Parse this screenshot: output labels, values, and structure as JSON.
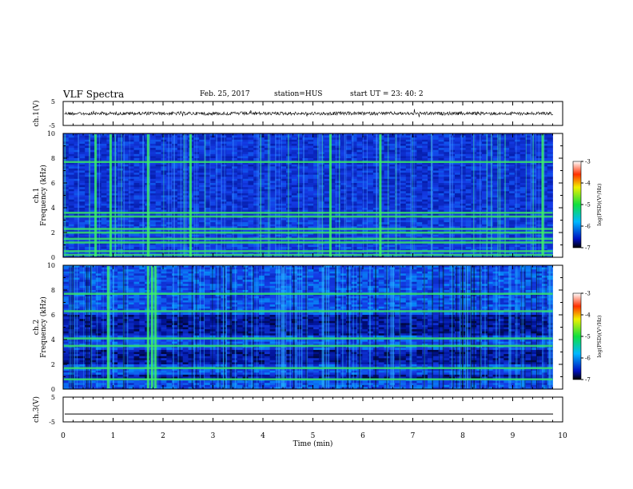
{
  "header": {
    "title": "VLF Spectra",
    "date": "Feb. 25, 2017",
    "station": "station=HUS",
    "start": "start  UT  =   23: 40: 2"
  },
  "chart_data": [
    {
      "type": "line",
      "panel": "ch1-waveform",
      "ylabel": "ch.1(V)",
      "ylim": [
        -5,
        5
      ],
      "yticks": [
        "5",
        "-5"
      ],
      "baseline": 0,
      "xlim": [
        0,
        10
      ]
    },
    {
      "type": "heatmap",
      "panel": "ch1-spectrogram",
      "ylabel": "ch.1\nFrequency (kHz)",
      "ylim": [
        0,
        10
      ],
      "yticks": [
        "0",
        "2",
        "4",
        "6",
        "8",
        "10"
      ],
      "xlim": [
        0,
        10
      ],
      "data_end_min": 9.8,
      "bands_khz": [
        0.2,
        0.5,
        1.2,
        1.5,
        2.0,
        2.3,
        3.3,
        3.6,
        7.7
      ],
      "bursts_min": [
        0.65,
        0.95,
        1.7,
        2.55,
        5.35,
        6.35,
        9.6
      ],
      "colorbar": {
        "label": "log(PSD)(V²/Hz)",
        "ticks": [
          "-3",
          "-4",
          "-5",
          "-6",
          "-7"
        ],
        "range": [
          -7,
          -3
        ]
      }
    },
    {
      "type": "heatmap",
      "panel": "ch2-spectrogram",
      "ylabel": "ch.2\nFrequency (kHz)",
      "ylim": [
        0,
        10
      ],
      "yticks": [
        "0",
        "2",
        "4",
        "6",
        "8",
        "10"
      ],
      "xlim": [
        0,
        10
      ],
      "data_end_min": 9.8,
      "bands_khz": [
        0.8,
        1.7,
        3.5,
        4.1,
        6.3,
        7.7
      ],
      "bursts_min": [
        0.9,
        1.7,
        1.78,
        1.85
      ],
      "colorbar": {
        "label": "log(PSD)(V²/Hz)",
        "ticks": [
          "-3",
          "-4",
          "-5",
          "-6",
          "-7"
        ],
        "range": [
          -7,
          -3
        ]
      }
    },
    {
      "type": "line",
      "panel": "ch3-waveform",
      "ylabel": "ch.3(V)",
      "ylim": [
        -5,
        5
      ],
      "yticks": [
        "5",
        "-5"
      ],
      "baseline": -1.8,
      "xlim": [
        0,
        10
      ]
    }
  ],
  "xaxis": {
    "label": "Time (min)",
    "ticks": [
      "0",
      "1",
      "2",
      "3",
      "4",
      "5",
      "6",
      "7",
      "8",
      "9",
      "10"
    ]
  }
}
